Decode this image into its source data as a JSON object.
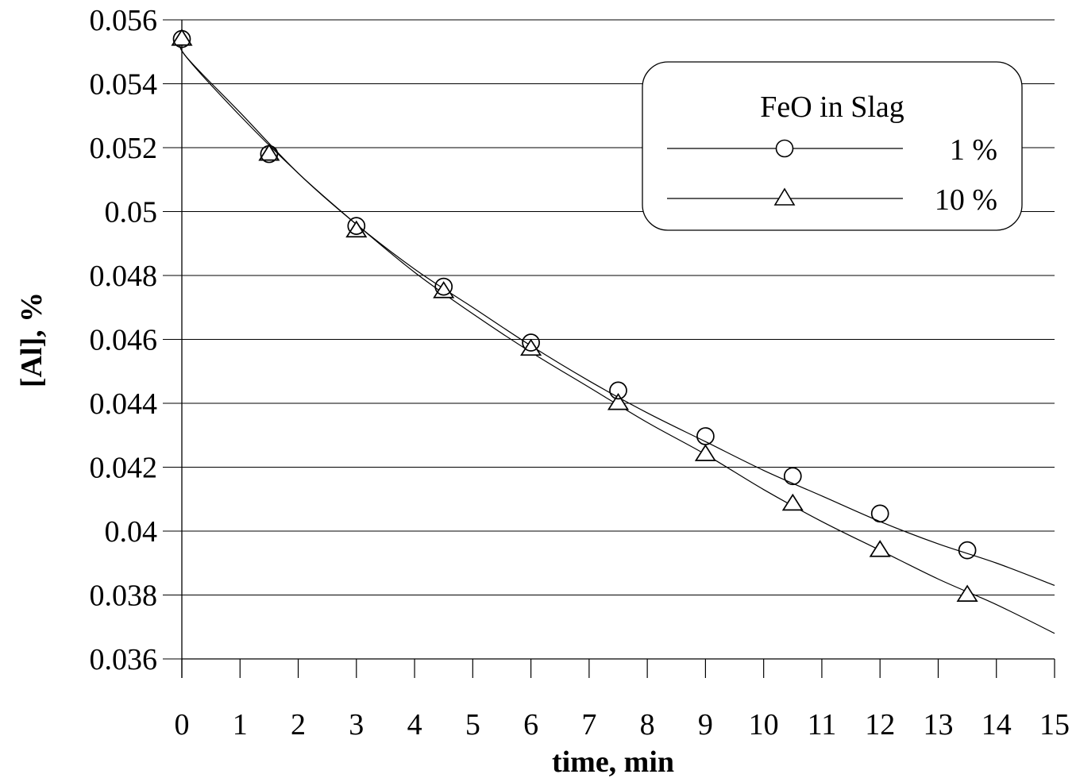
{
  "chart_data": {
    "type": "scatter",
    "xlabel": "time, min",
    "ylabel": "[Al], %",
    "xlim": [
      0,
      15
    ],
    "ylim": [
      0.036,
      0.056
    ],
    "x_ticks": [
      "0",
      "1",
      "2",
      "3",
      "4",
      "5",
      "6",
      "7",
      "8",
      "9",
      "10",
      "11",
      "12",
      "13",
      "14",
      "15"
    ],
    "y_ticks": [
      "0.036",
      "0.038",
      "0.04",
      "0.042",
      "0.044",
      "0.046",
      "0.048",
      "0.05",
      "0.052",
      "0.054",
      "0.056"
    ],
    "grid": "horizontal",
    "legend": {
      "title": "FeO in Slag",
      "position": "top-right",
      "entries": [
        "1 %",
        "10 %"
      ]
    },
    "series": [
      {
        "name": "1 %",
        "marker": "circle",
        "x": [
          0,
          1.5,
          3,
          4.5,
          6,
          7.5,
          9,
          10.5,
          12,
          13.5
        ],
        "values": [
          0.0554,
          0.0518,
          0.04955,
          0.04765,
          0.0459,
          0.0444,
          0.04297,
          0.04172,
          0.04055,
          0.0394
        ],
        "fit_curve": {
          "x": [
            0.05,
            1,
            2,
            3,
            4,
            5,
            6,
            7,
            8,
            9,
            10,
            11,
            12,
            13,
            14,
            15
          ],
          "values": [
            0.0549,
            0.0531,
            0.0512,
            0.0496,
            0.0482,
            0.047,
            0.0458,
            0.0447,
            0.0437,
            0.0428,
            0.0419,
            0.0411,
            0.0403,
            0.0396,
            0.039,
            0.0383
          ]
        }
      },
      {
        "name": "10 %",
        "marker": "triangle",
        "x": [
          0,
          1.5,
          3,
          4.5,
          6,
          7.5,
          9,
          10.5,
          12,
          13.5
        ],
        "values": [
          0.0554,
          0.0518,
          0.0494,
          0.0475,
          0.0457,
          0.044,
          0.0424,
          0.04085,
          0.0394,
          0.038
        ],
        "fit_curve": {
          "x": [
            0.05,
            1,
            2,
            3,
            4,
            5,
            6,
            7,
            8,
            9,
            10,
            11,
            12,
            13,
            14,
            15
          ],
          "values": [
            0.0549,
            0.053,
            0.0512,
            0.0496,
            0.0481,
            0.0468,
            0.0456,
            0.0445,
            0.0434,
            0.0424,
            0.0413,
            0.0403,
            0.0394,
            0.0385,
            0.0377,
            0.0368
          ]
        }
      }
    ]
  }
}
